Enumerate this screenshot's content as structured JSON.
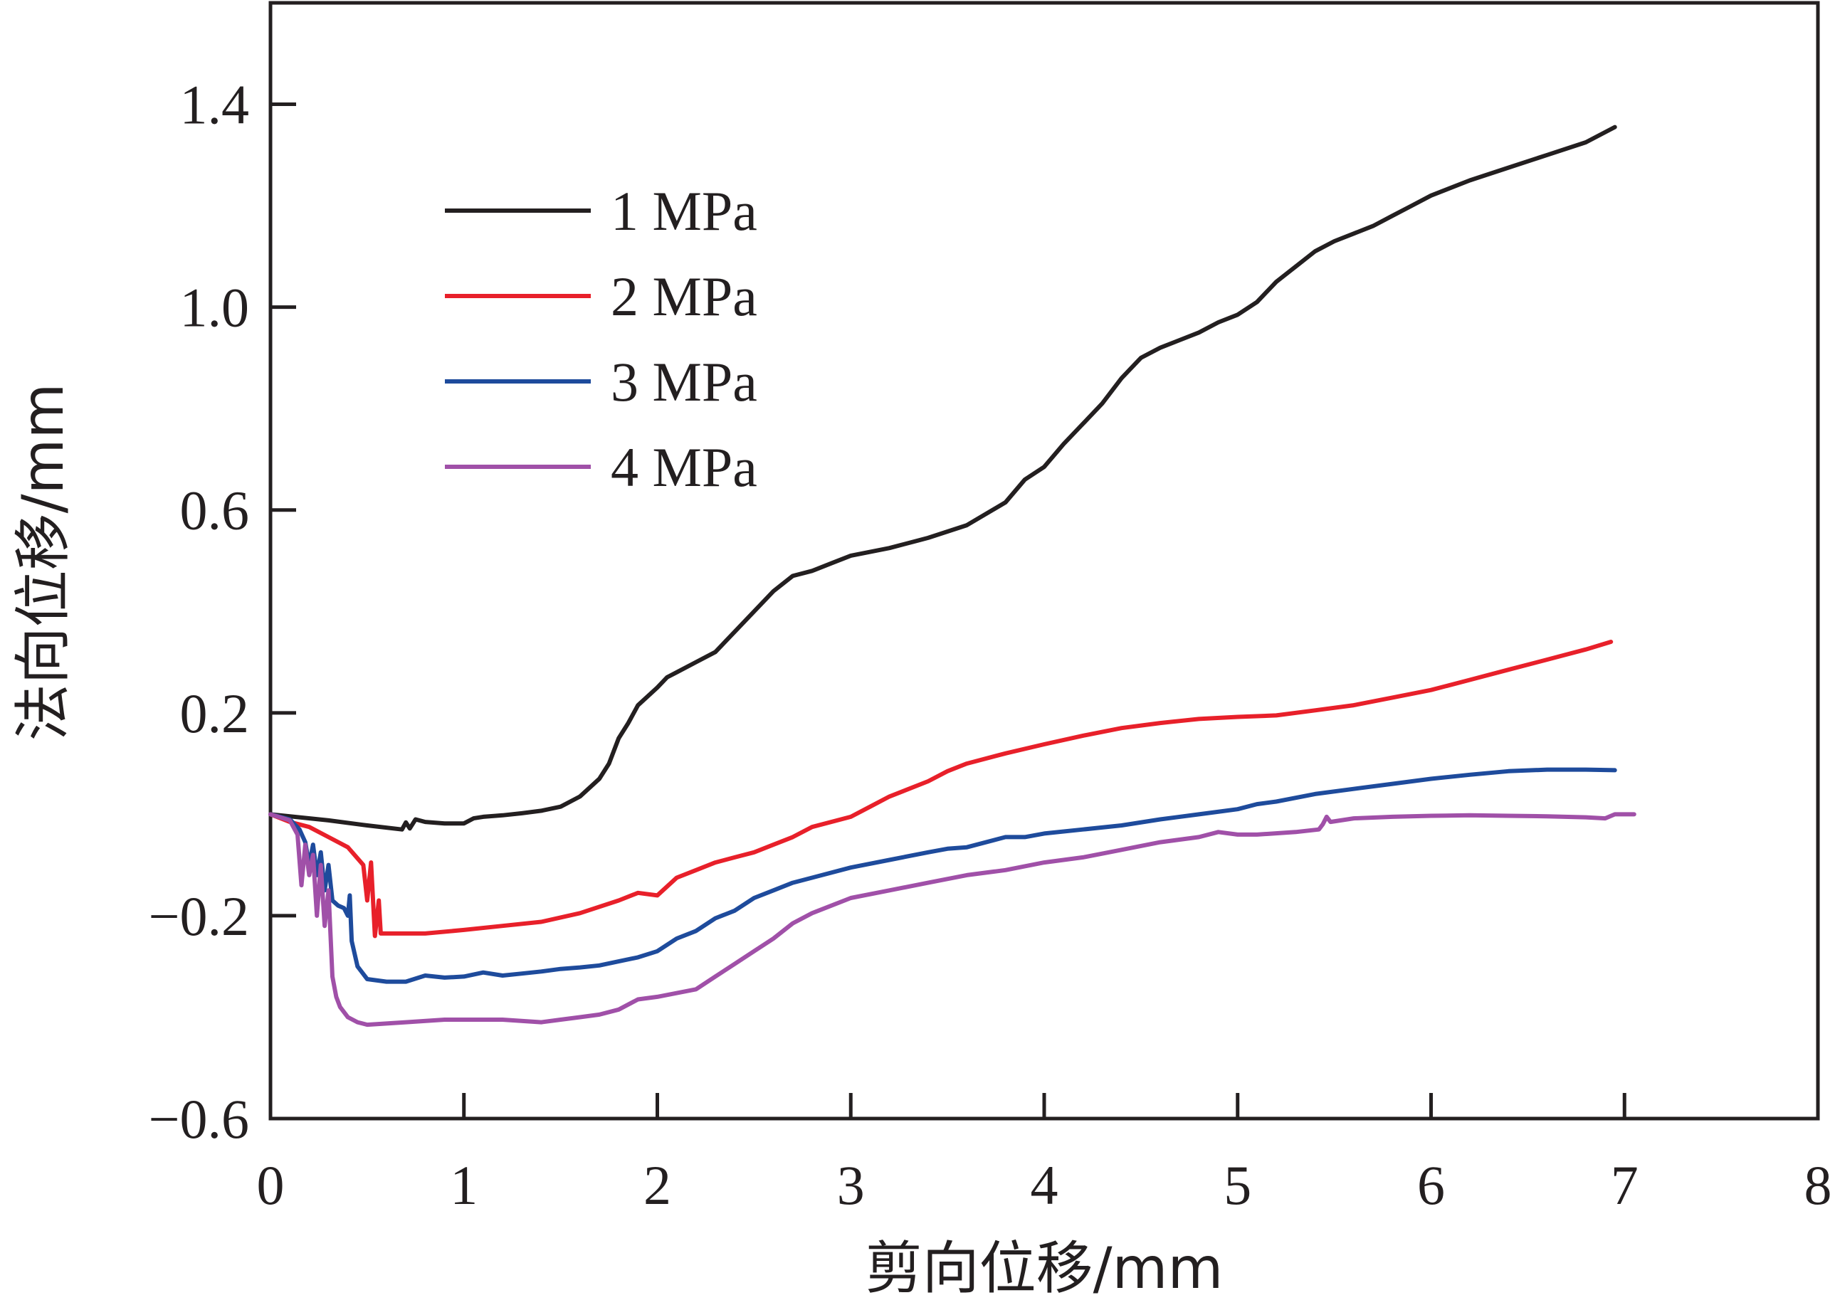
{
  "chart_data": {
    "type": "line",
    "xlabel": "剪向位移/mm",
    "ylabel": "法向位移/mm",
    "xlim": [
      0,
      8
    ],
    "ylim": [
      -0.6,
      1.6
    ],
    "x_ticks": [
      {
        "value": 0,
        "label": "0"
      },
      {
        "value": 1,
        "label": "1"
      },
      {
        "value": 2,
        "label": "2"
      },
      {
        "value": 3,
        "label": "3"
      },
      {
        "value": 4,
        "label": "4"
      },
      {
        "value": 5,
        "label": "5"
      },
      {
        "value": 6,
        "label": "6"
      },
      {
        "value": 7,
        "label": "7"
      },
      {
        "value": 8,
        "label": "8"
      }
    ],
    "y_ticks": [
      {
        "value": -0.6,
        "label": "−0.6"
      },
      {
        "value": -0.2,
        "label": "−0.2"
      },
      {
        "value": 0.2,
        "label": "0.2"
      },
      {
        "value": 0.6,
        "label": "0.6"
      },
      {
        "value": 1.0,
        "label": "1.0"
      },
      {
        "value": 1.4,
        "label": "1.4"
      }
    ],
    "grid": false,
    "legend_position": "top-left",
    "series": [
      {
        "name": "1 MPa",
        "color": "#231f20",
        "points": [
          [
            0,
            0
          ],
          [
            0.3,
            -0.012
          ],
          [
            0.5,
            -0.022
          ],
          [
            0.68,
            -0.03
          ],
          [
            0.7,
            -0.016
          ],
          [
            0.72,
            -0.028
          ],
          [
            0.75,
            -0.01
          ],
          [
            0.8,
            -0.015
          ],
          [
            0.9,
            -0.018
          ],
          [
            1.0,
            -0.018
          ],
          [
            1.05,
            -0.008
          ],
          [
            1.1,
            -0.005
          ],
          [
            1.2,
            -0.002
          ],
          [
            1.3,
            0.002
          ],
          [
            1.4,
            0.007
          ],
          [
            1.5,
            0.015
          ],
          [
            1.6,
            0.035
          ],
          [
            1.7,
            0.07
          ],
          [
            1.75,
            0.1
          ],
          [
            1.8,
            0.15
          ],
          [
            1.85,
            0.18
          ],
          [
            1.9,
            0.215
          ],
          [
            2.0,
            0.25
          ],
          [
            2.05,
            0.27
          ],
          [
            2.1,
            0.28
          ],
          [
            2.2,
            0.3
          ],
          [
            2.3,
            0.32
          ],
          [
            2.4,
            0.36
          ],
          [
            2.5,
            0.4
          ],
          [
            2.6,
            0.44
          ],
          [
            2.7,
            0.47
          ],
          [
            2.8,
            0.48
          ],
          [
            2.9,
            0.495
          ],
          [
            3.0,
            0.51
          ],
          [
            3.2,
            0.525
          ],
          [
            3.4,
            0.545
          ],
          [
            3.6,
            0.57
          ],
          [
            3.8,
            0.615
          ],
          [
            3.9,
            0.66
          ],
          [
            4.0,
            0.685
          ],
          [
            4.1,
            0.73
          ],
          [
            4.2,
            0.77
          ],
          [
            4.3,
            0.81
          ],
          [
            4.4,
            0.86
          ],
          [
            4.5,
            0.9
          ],
          [
            4.6,
            0.92
          ],
          [
            4.7,
            0.935
          ],
          [
            4.8,
            0.95
          ],
          [
            4.9,
            0.97
          ],
          [
            5.0,
            0.985
          ],
          [
            5.1,
            1.01
          ],
          [
            5.2,
            1.05
          ],
          [
            5.3,
            1.08
          ],
          [
            5.4,
            1.11
          ],
          [
            5.5,
            1.13
          ],
          [
            5.6,
            1.145
          ],
          [
            5.7,
            1.16
          ],
          [
            5.8,
            1.18
          ],
          [
            5.9,
            1.2
          ],
          [
            6.0,
            1.22
          ],
          [
            6.2,
            1.25
          ],
          [
            6.4,
            1.275
          ],
          [
            6.6,
            1.3
          ],
          [
            6.8,
            1.325
          ],
          [
            6.95,
            1.355
          ]
        ]
      },
      {
        "name": "2 MPa",
        "color": "#e8202a",
        "points": [
          [
            0,
            0
          ],
          [
            0.1,
            -0.015
          ],
          [
            0.2,
            -0.025
          ],
          [
            0.3,
            -0.045
          ],
          [
            0.4,
            -0.065
          ],
          [
            0.48,
            -0.1
          ],
          [
            0.5,
            -0.17
          ],
          [
            0.52,
            -0.095
          ],
          [
            0.54,
            -0.24
          ],
          [
            0.56,
            -0.17
          ],
          [
            0.57,
            -0.235
          ],
          [
            0.6,
            -0.235
          ],
          [
            0.8,
            -0.235
          ],
          [
            1.0,
            -0.228
          ],
          [
            1.2,
            -0.22
          ],
          [
            1.4,
            -0.212
          ],
          [
            1.6,
            -0.195
          ],
          [
            1.8,
            -0.17
          ],
          [
            1.9,
            -0.155
          ],
          [
            2.0,
            -0.16
          ],
          [
            2.1,
            -0.125
          ],
          [
            2.2,
            -0.11
          ],
          [
            2.3,
            -0.095
          ],
          [
            2.4,
            -0.085
          ],
          [
            2.5,
            -0.075
          ],
          [
            2.6,
            -0.06
          ],
          [
            2.7,
            -0.045
          ],
          [
            2.8,
            -0.025
          ],
          [
            3.0,
            -0.005
          ],
          [
            3.1,
            0.015
          ],
          [
            3.2,
            0.035
          ],
          [
            3.3,
            0.05
          ],
          [
            3.4,
            0.065
          ],
          [
            3.5,
            0.085
          ],
          [
            3.6,
            0.1
          ],
          [
            3.8,
            0.12
          ],
          [
            4.0,
            0.138
          ],
          [
            4.2,
            0.155
          ],
          [
            4.4,
            0.17
          ],
          [
            4.6,
            0.18
          ],
          [
            4.8,
            0.188
          ],
          [
            5.0,
            0.192
          ],
          [
            5.2,
            0.195
          ],
          [
            5.4,
            0.205
          ],
          [
            5.6,
            0.215
          ],
          [
            5.8,
            0.23
          ],
          [
            6.0,
            0.245
          ],
          [
            6.2,
            0.265
          ],
          [
            6.4,
            0.285
          ],
          [
            6.6,
            0.305
          ],
          [
            6.8,
            0.325
          ],
          [
            6.93,
            0.34
          ]
        ]
      },
      {
        "name": "3 MPa",
        "color": "#1e4b9c",
        "points": [
          [
            0,
            0
          ],
          [
            0.1,
            -0.01
          ],
          [
            0.15,
            -0.03
          ],
          [
            0.18,
            -0.055
          ],
          [
            0.2,
            -0.1
          ],
          [
            0.22,
            -0.06
          ],
          [
            0.24,
            -0.12
          ],
          [
            0.26,
            -0.075
          ],
          [
            0.28,
            -0.15
          ],
          [
            0.3,
            -0.1
          ],
          [
            0.32,
            -0.17
          ],
          [
            0.35,
            -0.18
          ],
          [
            0.38,
            -0.185
          ],
          [
            0.4,
            -0.2
          ],
          [
            0.41,
            -0.16
          ],
          [
            0.42,
            -0.25
          ],
          [
            0.45,
            -0.3
          ],
          [
            0.5,
            -0.325
          ],
          [
            0.6,
            -0.33
          ],
          [
            0.7,
            -0.33
          ],
          [
            0.8,
            -0.318
          ],
          [
            0.9,
            -0.322
          ],
          [
            1.0,
            -0.32
          ],
          [
            1.1,
            -0.312
          ],
          [
            1.2,
            -0.318
          ],
          [
            1.3,
            -0.314
          ],
          [
            1.4,
            -0.31
          ],
          [
            1.5,
            -0.305
          ],
          [
            1.6,
            -0.302
          ],
          [
            1.7,
            -0.298
          ],
          [
            1.8,
            -0.29
          ],
          [
            1.9,
            -0.282
          ],
          [
            2.0,
            -0.27
          ],
          [
            2.1,
            -0.245
          ],
          [
            2.2,
            -0.23
          ],
          [
            2.3,
            -0.205
          ],
          [
            2.4,
            -0.19
          ],
          [
            2.5,
            -0.165
          ],
          [
            2.6,
            -0.15
          ],
          [
            2.7,
            -0.135
          ],
          [
            2.8,
            -0.125
          ],
          [
            3.0,
            -0.105
          ],
          [
            3.2,
            -0.09
          ],
          [
            3.4,
            -0.075
          ],
          [
            3.5,
            -0.068
          ],
          [
            3.6,
            -0.065
          ],
          [
            3.8,
            -0.045
          ],
          [
            3.9,
            -0.045
          ],
          [
            4.0,
            -0.038
          ],
          [
            4.2,
            -0.03
          ],
          [
            4.4,
            -0.022
          ],
          [
            4.6,
            -0.01
          ],
          [
            4.8,
            0.0
          ],
          [
            5.0,
            0.01
          ],
          [
            5.1,
            0.02
          ],
          [
            5.2,
            0.025
          ],
          [
            5.4,
            0.04
          ],
          [
            5.6,
            0.05
          ],
          [
            5.8,
            0.06
          ],
          [
            6.0,
            0.07
          ],
          [
            6.2,
            0.078
          ],
          [
            6.4,
            0.085
          ],
          [
            6.6,
            0.088
          ],
          [
            6.8,
            0.088
          ],
          [
            6.95,
            0.087
          ]
        ]
      },
      {
        "name": "4 MPa",
        "color": "#a050a8",
        "points": [
          [
            0,
            0
          ],
          [
            0.1,
            -0.012
          ],
          [
            0.14,
            -0.04
          ],
          [
            0.16,
            -0.14
          ],
          [
            0.18,
            -0.06
          ],
          [
            0.2,
            -0.12
          ],
          [
            0.22,
            -0.08
          ],
          [
            0.24,
            -0.2
          ],
          [
            0.26,
            -0.1
          ],
          [
            0.28,
            -0.22
          ],
          [
            0.3,
            -0.15
          ],
          [
            0.32,
            -0.32
          ],
          [
            0.34,
            -0.36
          ],
          [
            0.36,
            -0.38
          ],
          [
            0.4,
            -0.4
          ],
          [
            0.45,
            -0.41
          ],
          [
            0.5,
            -0.415
          ],
          [
            0.7,
            -0.41
          ],
          [
            0.9,
            -0.405
          ],
          [
            1.0,
            -0.405
          ],
          [
            1.1,
            -0.405
          ],
          [
            1.2,
            -0.405
          ],
          [
            1.4,
            -0.41
          ],
          [
            1.5,
            -0.405
          ],
          [
            1.6,
            -0.4
          ],
          [
            1.7,
            -0.395
          ],
          [
            1.8,
            -0.385
          ],
          [
            1.9,
            -0.365
          ],
          [
            2.0,
            -0.36
          ],
          [
            2.2,
            -0.345
          ],
          [
            2.3,
            -0.32
          ],
          [
            2.4,
            -0.295
          ],
          [
            2.5,
            -0.27
          ],
          [
            2.6,
            -0.245
          ],
          [
            2.7,
            -0.215
          ],
          [
            2.8,
            -0.195
          ],
          [
            3.0,
            -0.165
          ],
          [
            3.2,
            -0.15
          ],
          [
            3.4,
            -0.135
          ],
          [
            3.6,
            -0.12
          ],
          [
            3.8,
            -0.11
          ],
          [
            4.0,
            -0.095
          ],
          [
            4.2,
            -0.085
          ],
          [
            4.4,
            -0.07
          ],
          [
            4.6,
            -0.055
          ],
          [
            4.8,
            -0.045
          ],
          [
            4.9,
            -0.035
          ],
          [
            5.0,
            -0.04
          ],
          [
            5.1,
            -0.04
          ],
          [
            5.3,
            -0.035
          ],
          [
            5.42,
            -0.03
          ],
          [
            5.44,
            -0.02
          ],
          [
            5.46,
            -0.005
          ],
          [
            5.48,
            -0.015
          ],
          [
            5.6,
            -0.008
          ],
          [
            5.8,
            -0.005
          ],
          [
            6.0,
            -0.003
          ],
          [
            6.2,
            -0.002
          ],
          [
            6.4,
            -0.003
          ],
          [
            6.6,
            -0.004
          ],
          [
            6.8,
            -0.006
          ],
          [
            6.9,
            -0.008
          ],
          [
            6.95,
            0.0
          ],
          [
            7.05,
            0.0
          ]
        ]
      }
    ]
  }
}
